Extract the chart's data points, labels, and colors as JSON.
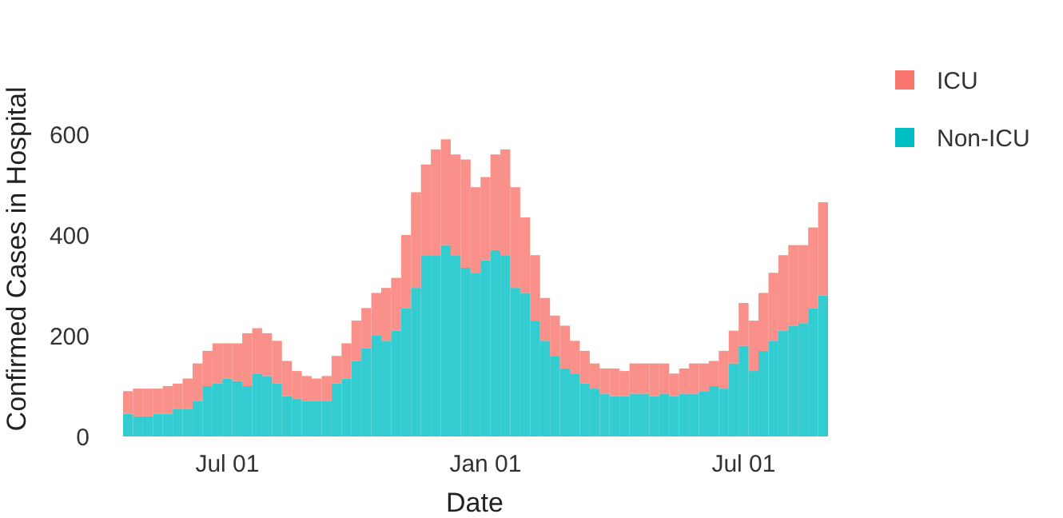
{
  "chart_data": {
    "type": "bar",
    "stacked": true,
    "xlabel": "Date",
    "ylabel": "Confirmed Cases in Hospital",
    "categories": [
      null,
      null,
      null,
      null,
      null,
      null,
      null,
      null,
      null,
      null,
      "Jul 01",
      null,
      null,
      null,
      null,
      null,
      null,
      null,
      null,
      null,
      null,
      null,
      null,
      null,
      null,
      null,
      null,
      null,
      null,
      null,
      null,
      null,
      null,
      null,
      null,
      null,
      "Jan 01",
      null,
      null,
      null,
      null,
      null,
      null,
      null,
      null,
      null,
      null,
      null,
      null,
      null,
      null,
      null,
      null,
      null,
      null,
      null,
      null,
      null,
      null,
      null,
      null,
      null,
      "Jul 01",
      null,
      null,
      null,
      null,
      null,
      null,
      null,
      null
    ],
    "series": [
      {
        "name": "Non-ICU",
        "color": "#00bfc4",
        "values": [
          45,
          40,
          40,
          45,
          45,
          55,
          55,
          70,
          100,
          105,
          115,
          110,
          100,
          125,
          120,
          105,
          80,
          75,
          70,
          70,
          70,
          105,
          115,
          150,
          175,
          200,
          190,
          210,
          255,
          295,
          360,
          360,
          380,
          360,
          335,
          325,
          350,
          370,
          360,
          295,
          285,
          230,
          190,
          160,
          135,
          125,
          105,
          95,
          85,
          80,
          80,
          85,
          85,
          80,
          85,
          80,
          85,
          85,
          90,
          100,
          95,
          145,
          180,
          130,
          170,
          190,
          210,
          220,
          225,
          255,
          280
        ]
      },
      {
        "name": "ICU",
        "color": "#f8766d",
        "values": [
          45,
          55,
          55,
          50,
          55,
          50,
          60,
          75,
          70,
          80,
          70,
          75,
          105,
          90,
          85,
          85,
          70,
          55,
          50,
          45,
          50,
          55,
          70,
          80,
          80,
          85,
          105,
          105,
          145,
          190,
          180,
          210,
          210,
          200,
          215,
          170,
          165,
          190,
          210,
          200,
          150,
          130,
          85,
          80,
          85,
          65,
          65,
          50,
          50,
          55,
          50,
          60,
          60,
          65,
          60,
          45,
          50,
          60,
          55,
          50,
          75,
          65,
          85,
          100,
          115,
          135,
          150,
          160,
          155,
          160,
          185
        ]
      }
    ],
    "ylim": [
      0,
      600
    ],
    "yticks": [
      0,
      200,
      400,
      600
    ],
    "grid": false,
    "legend": "right"
  }
}
